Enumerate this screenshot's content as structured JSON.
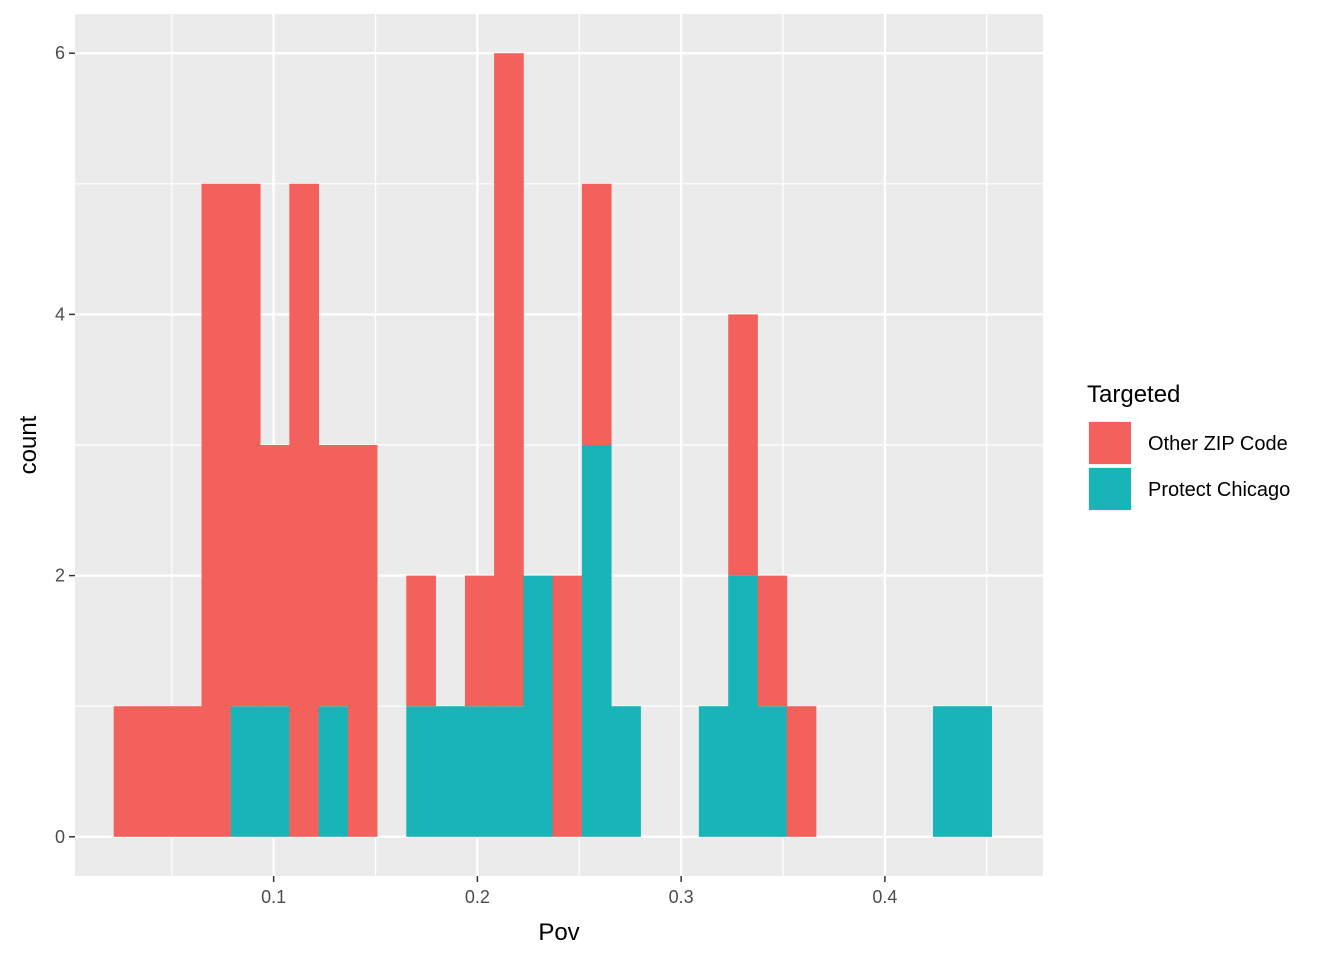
{
  "chart_data": {
    "type": "bar",
    "subtype": "stacked-histogram",
    "xlabel": "Pov",
    "ylabel": "count",
    "xlim": [
      0.0025,
      0.4776
    ],
    "ylim": [
      -0.3,
      6.3
    ],
    "x_ticks": [
      0.1,
      0.2,
      0.3,
      0.4
    ],
    "x_tick_labels": [
      "0.1",
      "0.2",
      "0.3",
      "0.4"
    ],
    "y_ticks": [
      0,
      2,
      4,
      6
    ],
    "y_tick_labels": [
      "0",
      "2",
      "4",
      "6"
    ],
    "x_minor_ticks": [
      0.05,
      0.15,
      0.25,
      0.35,
      0.45
    ],
    "y_minor_ticks": [
      1,
      3,
      5
    ],
    "bin_width": 0.01436,
    "bins_start": [
      0.0215,
      0.0359,
      0.0503,
      0.0646,
      0.079,
      0.0933,
      0.1077,
      0.1221,
      0.1364,
      0.1651,
      0.1795,
      0.1939,
      0.2082,
      0.2226,
      0.2369,
      0.2513,
      0.2657,
      0.3087,
      0.3231,
      0.3375,
      0.3518,
      0.4236,
      0.438
    ],
    "grid": true,
    "legend": {
      "title": "Targeted",
      "position": "right"
    },
    "series": [
      {
        "name": "Protect Chicago",
        "color": "#19B4B8",
        "values": [
          0,
          0,
          0,
          0,
          1,
          1,
          0,
          1,
          0,
          1,
          1,
          1,
          1,
          2,
          0,
          3,
          1,
          1,
          2,
          1,
          0,
          1,
          1
        ]
      },
      {
        "name": "Other ZIP Code",
        "color": "#F2615C",
        "values": [
          1,
          1,
          1,
          5,
          4,
          2,
          5,
          2,
          3,
          1,
          0,
          1,
          5,
          0,
          2,
          2,
          0,
          0,
          2,
          1,
          1,
          0,
          0
        ]
      }
    ]
  }
}
